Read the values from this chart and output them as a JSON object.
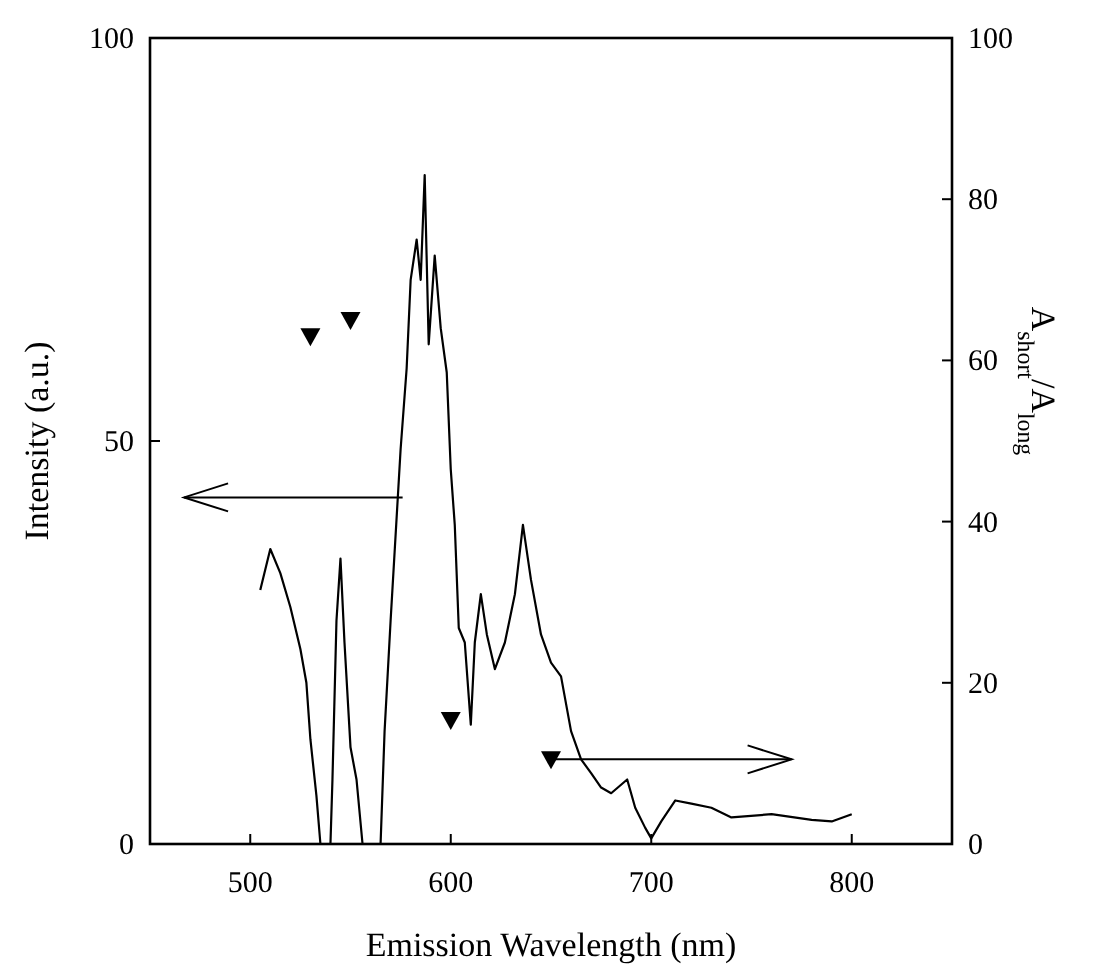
{
  "chart_data": {
    "type": "line",
    "xlabel": "Emission Wavelength (nm)",
    "ylabel": "Intensity (a.u.)",
    "y2label": "A$_{short}$/A$_{long}$",
    "xlim": [
      450,
      850
    ],
    "xticks": [
      500,
      600,
      700,
      800
    ],
    "ylim": [
      0,
      100
    ],
    "yticks": [
      0,
      50,
      100
    ],
    "y2lim": [
      0,
      100
    ],
    "y2ticks": [
      0,
      20,
      40,
      60,
      80,
      100
    ],
    "grid": false,
    "series": [
      {
        "color": "#000000",
        "line_style": "solid",
        "marker": "none",
        "x": [
          505,
          510,
          515,
          520,
          525,
          528,
          530,
          533,
          535,
          540,
          541,
          543,
          545,
          547,
          550,
          553,
          556,
          565,
          567,
          570,
          575,
          578,
          580,
          583,
          585,
          587,
          589,
          592,
          595,
          598,
          600,
          602,
          604,
          607,
          610,
          612,
          615,
          618,
          622,
          627,
          632,
          636,
          640,
          645,
          650,
          655,
          660,
          665,
          670,
          675,
          680,
          688,
          692,
          697,
          700,
          705,
          712,
          720,
          730,
          740,
          760,
          780,
          790,
          800
        ],
        "values": [
          31.5,
          36.6,
          33.6,
          29.4,
          24.2,
          20,
          13,
          6,
          0,
          0,
          8,
          27.7,
          35.4,
          25,
          12,
          8,
          0,
          0,
          14,
          27.7,
          49,
          59,
          70,
          75,
          70,
          83,
          62,
          73,
          64,
          58.5,
          46.5,
          39.6,
          26.8,
          25,
          14.8,
          25,
          31,
          26,
          21.7,
          25,
          31,
          39.6,
          32.8,
          26,
          22.5,
          20.8,
          14,
          10.5,
          8.8,
          7,
          6.3,
          8,
          4.5,
          2,
          0.7,
          2.8,
          5.4,
          5,
          4.5,
          3.3,
          3.7,
          3,
          2.8,
          3.7
        ]
      },
      {
        "type": "scatter",
        "color": "#000000",
        "marker": "triangle",
        "axis": "y2",
        "x": [
          530,
          550,
          600,
          650
        ],
        "values": [
          63,
          65,
          15.4,
          10.5
        ]
      }
    ]
  }
}
